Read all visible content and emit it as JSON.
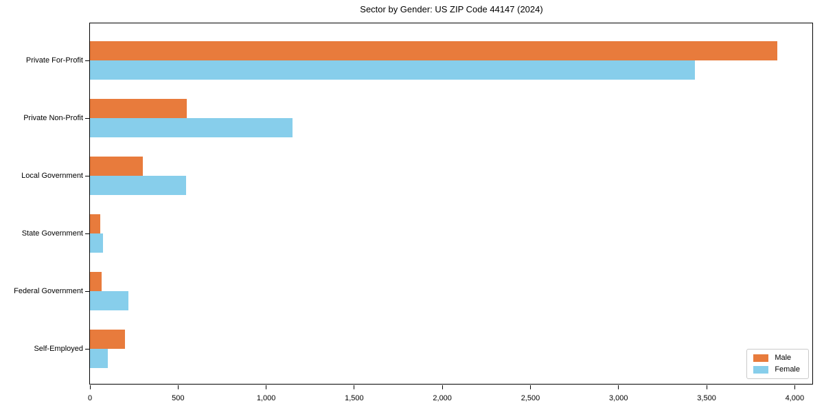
{
  "chart_data": {
    "type": "bar",
    "orientation": "horizontal",
    "title": "Sector by Gender: US ZIP Code 44147 (2024)",
    "categories": [
      "Private For-Profit",
      "Private Non-Profit",
      "Local Government",
      "State Government",
      "Federal Government",
      "Self-Employed"
    ],
    "series": [
      {
        "name": "Male",
        "color": "#e87b3c",
        "values": [
          3900,
          550,
          300,
          60,
          65,
          200
        ]
      },
      {
        "name": "Female",
        "color": "#87ceeb",
        "values": [
          3435,
          1150,
          545,
          75,
          220,
          100
        ]
      }
    ],
    "xlabel": "",
    "ylabel": "",
    "xlim": [
      0,
      4100
    ],
    "xticks": {
      "values": [
        0,
        500,
        1000,
        1500,
        2000,
        2500,
        3000,
        3500,
        4000
      ],
      "labels": [
        "0",
        "500",
        "1,000",
        "1,500",
        "2,000",
        "2,500",
        "3,000",
        "3,500",
        "4,000"
      ]
    },
    "grid": false,
    "legend": {
      "position": "lower right",
      "entries": [
        "Male",
        "Female"
      ]
    }
  },
  "colors": {
    "background": "#ffffff",
    "spine": "#000000",
    "text": "#000000",
    "legend_border": "#c9c9c9",
    "male": "#e87b3c",
    "female": "#87ceeb"
  }
}
